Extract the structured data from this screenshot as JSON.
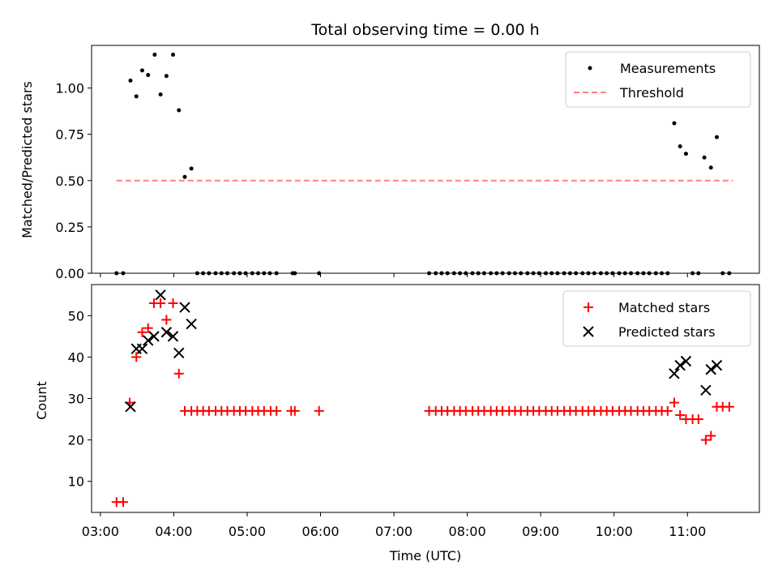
{
  "chart_data": [
    {
      "type": "scatter",
      "title": "Total observing time = 0.00 h",
      "xlabel": "",
      "ylabel": "Matched/Predicted stars",
      "xlim": [
        2.88,
        11.98
      ],
      "ylim": [
        0.0,
        1.23
      ],
      "yticks": [
        0.0,
        0.25,
        0.5,
        0.75,
        1.0
      ],
      "ytick_labels": [
        "0.00",
        "0.25",
        "0.50",
        "0.75",
        "1.00"
      ],
      "legend_position": "top-right",
      "colors": {
        "Measurements": "#000000",
        "Threshold": "#ff8080"
      },
      "series": [
        {
          "name": "Measurements",
          "marker": "dot",
          "points": [
            [
              3.22,
              0.0
            ],
            [
              3.31,
              0.0
            ],
            [
              3.41,
              1.04
            ],
            [
              3.49,
              0.955
            ],
            [
              3.57,
              1.095
            ],
            [
              3.65,
              1.07
            ],
            [
              3.74,
              1.18
            ],
            [
              3.82,
              0.965
            ],
            [
              3.9,
              1.065
            ],
            [
              3.99,
              1.18
            ],
            [
              4.07,
              0.88
            ],
            [
              4.15,
              0.52
            ],
            [
              4.24,
              0.565
            ],
            [
              4.32,
              0.0
            ],
            [
              4.4,
              0.0
            ],
            [
              4.48,
              0.0
            ],
            [
              4.57,
              0.0
            ],
            [
              4.65,
              0.0
            ],
            [
              4.73,
              0.0
            ],
            [
              4.82,
              0.0
            ],
            [
              4.9,
              0.0
            ],
            [
              4.98,
              0.0
            ],
            [
              5.07,
              0.0
            ],
            [
              5.15,
              0.0
            ],
            [
              5.23,
              0.0
            ],
            [
              5.31,
              0.0
            ],
            [
              5.4,
              0.0
            ],
            [
              5.62,
              0.0
            ],
            [
              5.65,
              0.0
            ],
            [
              5.98,
              0.0
            ],
            [
              7.48,
              0.0
            ],
            [
              7.57,
              0.0
            ],
            [
              7.65,
              0.0
            ],
            [
              7.73,
              0.0
            ],
            [
              7.82,
              0.0
            ],
            [
              7.9,
              0.0
            ],
            [
              7.98,
              0.0
            ],
            [
              8.07,
              0.0
            ],
            [
              8.15,
              0.0
            ],
            [
              8.23,
              0.0
            ],
            [
              8.32,
              0.0
            ],
            [
              8.4,
              0.0
            ],
            [
              8.48,
              0.0
            ],
            [
              8.57,
              0.0
            ],
            [
              8.65,
              0.0
            ],
            [
              8.73,
              0.0
            ],
            [
              8.82,
              0.0
            ],
            [
              8.9,
              0.0
            ],
            [
              8.98,
              0.0
            ],
            [
              9.07,
              0.0
            ],
            [
              9.15,
              0.0
            ],
            [
              9.23,
              0.0
            ],
            [
              9.32,
              0.0
            ],
            [
              9.4,
              0.0
            ],
            [
              9.48,
              0.0
            ],
            [
              9.57,
              0.0
            ],
            [
              9.65,
              0.0
            ],
            [
              9.73,
              0.0
            ],
            [
              9.82,
              0.0
            ],
            [
              9.9,
              0.0
            ],
            [
              9.98,
              0.0
            ],
            [
              10.07,
              0.0
            ],
            [
              10.15,
              0.0
            ],
            [
              10.23,
              0.0
            ],
            [
              10.32,
              0.0
            ],
            [
              10.4,
              0.0
            ],
            [
              10.48,
              0.0
            ],
            [
              10.57,
              0.0
            ],
            [
              10.65,
              0.0
            ],
            [
              10.73,
              0.0
            ],
            [
              10.82,
              0.81
            ],
            [
              10.9,
              0.685
            ],
            [
              10.98,
              0.645
            ],
            [
              11.07,
              0.0
            ],
            [
              11.15,
              0.0
            ],
            [
              11.23,
              0.625
            ],
            [
              11.32,
              0.57
            ],
            [
              11.4,
              0.735
            ],
            [
              11.48,
              0.0
            ],
            [
              11.57,
              0.0
            ]
          ]
        },
        {
          "name": "Threshold",
          "marker": "dashed-line",
          "points": [
            [
              3.22,
              0.5
            ],
            [
              11.62,
              0.5
            ]
          ]
        }
      ]
    },
    {
      "type": "scatter",
      "title": "",
      "xlabel": "Time (UTC)",
      "ylabel": "Count",
      "xlim": [
        2.88,
        11.98
      ],
      "ylim": [
        2.5,
        57.5
      ],
      "xticks": [
        3,
        4,
        5,
        6,
        7,
        8,
        9,
        10,
        11
      ],
      "xtick_labels": [
        "03:00",
        "04:00",
        "05:00",
        "06:00",
        "07:00",
        "08:00",
        "09:00",
        "10:00",
        "11:00"
      ],
      "yticks": [
        10,
        20,
        30,
        40,
        50
      ],
      "ytick_labels": [
        "10",
        "20",
        "30",
        "40",
        "50"
      ],
      "legend_position": "top-right",
      "colors": {
        "Matched stars": "#ff0000",
        "Predicted stars": "#000000"
      },
      "series": [
        {
          "name": "Matched stars",
          "marker": "plus",
          "points": [
            [
              3.22,
              5
            ],
            [
              3.31,
              5
            ],
            [
              3.4,
              29
            ],
            [
              3.49,
              40
            ],
            [
              3.57,
              46
            ],
            [
              3.65,
              47
            ],
            [
              3.73,
              53
            ],
            [
              3.82,
              53
            ],
            [
              3.9,
              49
            ],
            [
              3.99,
              53
            ],
            [
              4.07,
              36
            ],
            [
              4.15,
              27
            ],
            [
              4.24,
              27
            ],
            [
              4.32,
              27
            ],
            [
              4.4,
              27
            ],
            [
              4.48,
              27
            ],
            [
              4.57,
              27
            ],
            [
              4.65,
              27
            ],
            [
              4.73,
              27
            ],
            [
              4.82,
              27
            ],
            [
              4.9,
              27
            ],
            [
              4.98,
              27
            ],
            [
              5.07,
              27
            ],
            [
              5.15,
              27
            ],
            [
              5.23,
              27
            ],
            [
              5.32,
              27
            ],
            [
              5.4,
              27
            ],
            [
              5.6,
              27
            ],
            [
              5.65,
              27
            ],
            [
              5.98,
              27
            ],
            [
              7.48,
              27
            ],
            [
              7.57,
              27
            ],
            [
              7.65,
              27
            ],
            [
              7.73,
              27
            ],
            [
              7.82,
              27
            ],
            [
              7.9,
              27
            ],
            [
              7.98,
              27
            ],
            [
              8.07,
              27
            ],
            [
              8.15,
              27
            ],
            [
              8.23,
              27
            ],
            [
              8.32,
              27
            ],
            [
              8.4,
              27
            ],
            [
              8.48,
              27
            ],
            [
              8.57,
              27
            ],
            [
              8.65,
              27
            ],
            [
              8.73,
              27
            ],
            [
              8.82,
              27
            ],
            [
              8.9,
              27
            ],
            [
              8.98,
              27
            ],
            [
              9.07,
              27
            ],
            [
              9.15,
              27
            ],
            [
              9.23,
              27
            ],
            [
              9.32,
              27
            ],
            [
              9.4,
              27
            ],
            [
              9.48,
              27
            ],
            [
              9.57,
              27
            ],
            [
              9.65,
              27
            ],
            [
              9.73,
              27
            ],
            [
              9.82,
              27
            ],
            [
              9.9,
              27
            ],
            [
              9.98,
              27
            ],
            [
              10.07,
              27
            ],
            [
              10.15,
              27
            ],
            [
              10.23,
              27
            ],
            [
              10.32,
              27
            ],
            [
              10.4,
              27
            ],
            [
              10.48,
              27
            ],
            [
              10.57,
              27
            ],
            [
              10.65,
              27
            ],
            [
              10.73,
              27
            ],
            [
              10.82,
              29
            ],
            [
              10.9,
              26
            ],
            [
              10.98,
              25
            ],
            [
              11.07,
              25
            ],
            [
              11.15,
              25
            ],
            [
              11.25,
              20
            ],
            [
              11.32,
              21
            ],
            [
              11.4,
              28
            ],
            [
              11.48,
              28
            ],
            [
              11.57,
              28
            ]
          ]
        },
        {
          "name": "Predicted stars",
          "marker": "x",
          "points": [
            [
              3.41,
              28
            ],
            [
              3.49,
              42
            ],
            [
              3.57,
              42
            ],
            [
              3.65,
              44
            ],
            [
              3.73,
              45
            ],
            [
              3.82,
              55
            ],
            [
              3.9,
              46
            ],
            [
              3.99,
              45
            ],
            [
              4.07,
              41
            ],
            [
              4.15,
              52
            ],
            [
              4.24,
              48
            ],
            [
              10.82,
              36
            ],
            [
              10.9,
              38
            ],
            [
              10.98,
              39
            ],
            [
              11.25,
              32
            ],
            [
              11.32,
              37
            ],
            [
              11.4,
              38
            ]
          ]
        }
      ]
    }
  ]
}
